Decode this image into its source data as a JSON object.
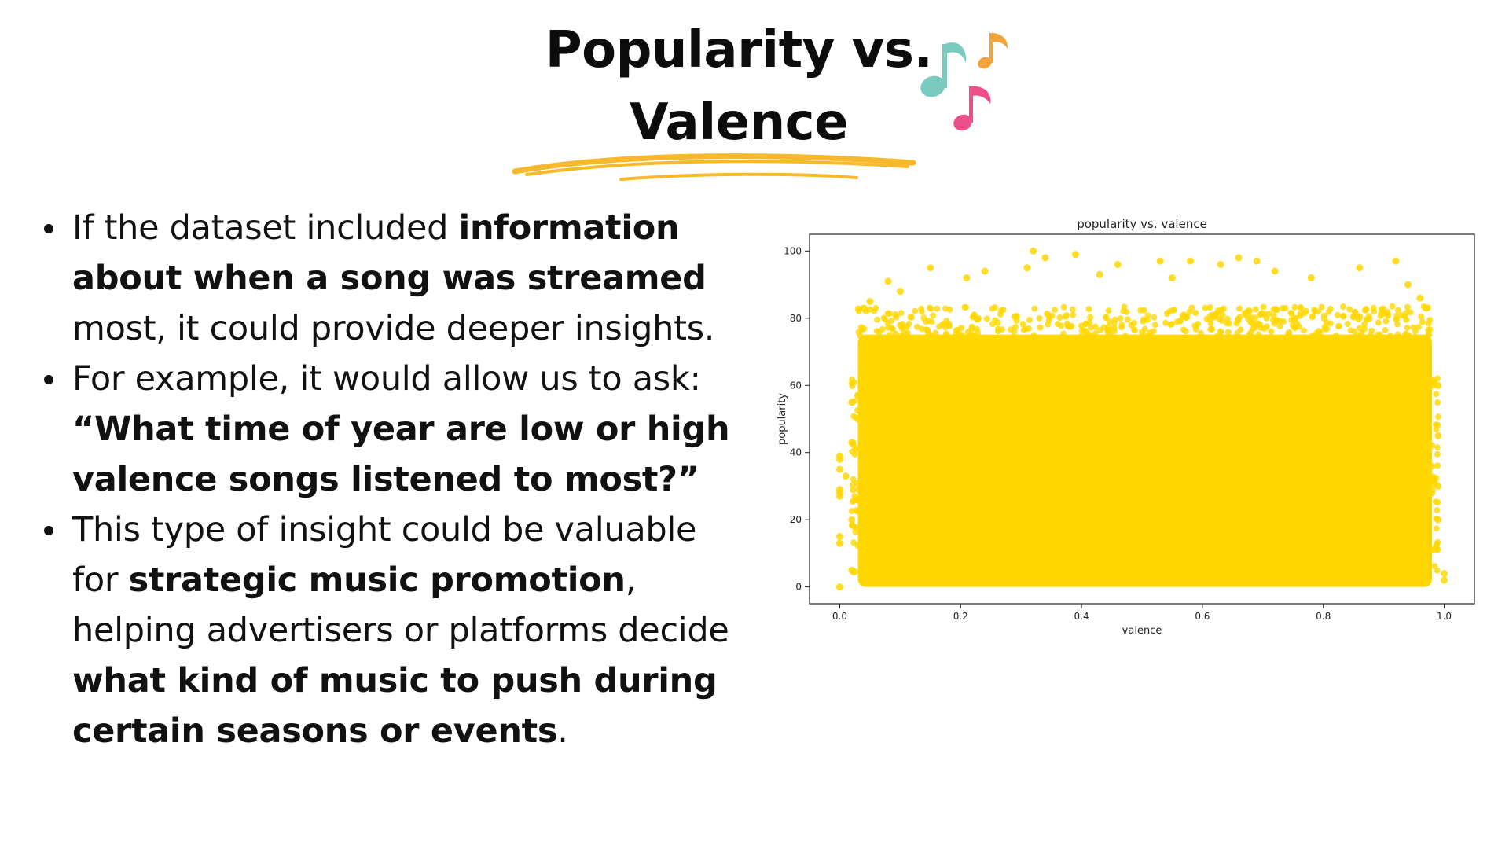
{
  "slide": {
    "title_line1": "Popularity vs.",
    "title_line2": "Valence",
    "title_icon": "music-notes-icon",
    "accent_color": "#f7b82b",
    "note_colors": [
      "#79cbbd",
      "#f4a23c",
      "#ec4f8a"
    ]
  },
  "bullets": [
    {
      "parts": [
        {
          "text": "If the dataset included ",
          "bold": false
        },
        {
          "text": "information about when a song was streamed",
          "bold": true
        },
        {
          "text": " most, it could provide deeper insights.",
          "bold": false
        }
      ]
    },
    {
      "parts": [
        {
          "text": "For example, it would allow us to ask: ",
          "bold": false
        },
        {
          "text": "“What time of year are low or high valence songs listened to most?”",
          "bold": true
        }
      ]
    },
    {
      "parts": [
        {
          "text": "This type of insight could be valuable for ",
          "bold": false
        },
        {
          "text": "strategic music promotion",
          "bold": true
        },
        {
          "text": ", helping advertisers or platforms decide ",
          "bold": false
        },
        {
          "text": "what kind of music to push during certain seasons or events",
          "bold": true
        },
        {
          "text": ".",
          "bold": false
        }
      ]
    }
  ],
  "chart_data": {
    "type": "scatter",
    "title": "popularity vs. valence",
    "xlabel": "valence",
    "ylabel": "popularity",
    "xlim": [
      -0.05,
      1.05
    ],
    "ylim": [
      -5,
      105
    ],
    "xticks": [
      0.0,
      0.2,
      0.4,
      0.6,
      0.8,
      1.0
    ],
    "xtick_labels": [
      "0.0",
      "0.2",
      "0.4",
      "0.6",
      "0.8",
      "1.0"
    ],
    "yticks": [
      0,
      20,
      40,
      60,
      80,
      100
    ],
    "ytick_labels": [
      "0",
      "20",
      "40",
      "60",
      "80",
      "100"
    ],
    "grid": false,
    "legend": "none",
    "marker_color": "#ffd700",
    "dense_region": {
      "x": [
        0.03,
        0.98
      ],
      "y": [
        0,
        77
      ]
    },
    "series": [
      {
        "points": [
          {
            "x": 0.32,
            "y": 100
          },
          {
            "x": 0.39,
            "y": 99
          },
          {
            "x": 0.34,
            "y": 98
          },
          {
            "x": 0.66,
            "y": 98
          },
          {
            "x": 0.92,
            "y": 97
          },
          {
            "x": 0.69,
            "y": 97
          },
          {
            "x": 0.53,
            "y": 97
          },
          {
            "x": 0.58,
            "y": 97
          },
          {
            "x": 0.63,
            "y": 96
          },
          {
            "x": 0.46,
            "y": 96
          },
          {
            "x": 0.15,
            "y": 95
          },
          {
            "x": 0.31,
            "y": 95
          },
          {
            "x": 0.86,
            "y": 95
          },
          {
            "x": 0.24,
            "y": 94
          },
          {
            "x": 0.72,
            "y": 94
          },
          {
            "x": 0.08,
            "y": 91
          },
          {
            "x": 0.21,
            "y": 92
          },
          {
            "x": 0.43,
            "y": 93
          },
          {
            "x": 0.55,
            "y": 92
          },
          {
            "x": 0.78,
            "y": 92
          },
          {
            "x": 0.94,
            "y": 90
          },
          {
            "x": 0.04,
            "y": 83
          },
          {
            "x": 0.05,
            "y": 85
          },
          {
            "x": 0.1,
            "y": 88
          },
          {
            "x": 0.97,
            "y": 83
          },
          {
            "x": 0.96,
            "y": 86
          },
          {
            "x": 0.0,
            "y": 39
          },
          {
            "x": 0.0,
            "y": 38
          },
          {
            "x": 0.0,
            "y": 35
          },
          {
            "x": 0.0,
            "y": 29
          },
          {
            "x": 0.0,
            "y": 28
          },
          {
            "x": 0.0,
            "y": 27
          },
          {
            "x": 0.0,
            "y": 15
          },
          {
            "x": 0.0,
            "y": 13
          },
          {
            "x": 0.0,
            "y": 0
          },
          {
            "x": 0.01,
            "y": 33
          },
          {
            "x": 0.02,
            "y": 5
          },
          {
            "x": 0.02,
            "y": 20
          },
          {
            "x": 0.02,
            "y": 43
          },
          {
            "x": 0.02,
            "y": 55
          },
          {
            "x": 0.99,
            "y": 20
          },
          {
            "x": 0.99,
            "y": 30
          },
          {
            "x": 0.99,
            "y": 45
          },
          {
            "x": 1.0,
            "y": 2
          },
          {
            "x": 1.0,
            "y": 4
          },
          {
            "x": 0.99,
            "y": 60
          }
        ]
      }
    ]
  }
}
